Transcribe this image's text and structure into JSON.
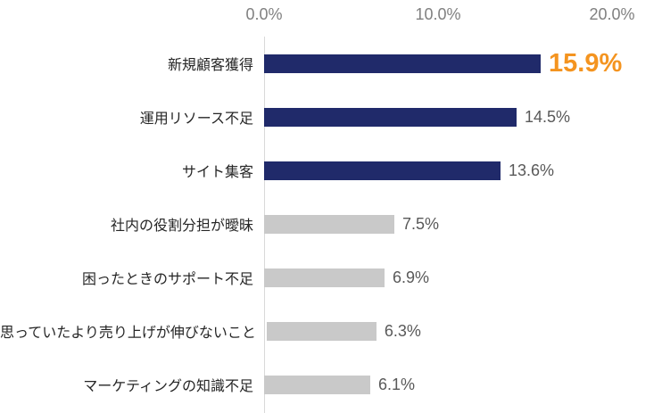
{
  "chart_data": {
    "type": "bar",
    "orientation": "horizontal",
    "title": "",
    "categories": [
      "新規顧客獲得",
      "運用リソース不足",
      "サイト集客",
      "社内の役割分担が曖昧",
      "困ったときのサポート不足",
      "思っていたより売り上げが伸びないこと",
      "マーケティングの知識不足"
    ],
    "values": [
      15.9,
      14.5,
      13.6,
      7.5,
      6.9,
      6.3,
      6.1
    ],
    "value_labels": [
      "15.9%",
      "14.5%",
      "13.6%",
      "7.5%",
      "6.9%",
      "6.3%",
      "6.1%"
    ],
    "bar_colors": [
      "#202A6A",
      "#202A6A",
      "#202A6A",
      "#C9C9C9",
      "#C9C9C9",
      "#C9C9C9",
      "#C9C9C9"
    ],
    "highlight_index": 0,
    "xlabel": "",
    "ylabel": "",
    "x_axis": {
      "position": "top",
      "range": [
        0,
        20
      ],
      "ticks": [
        0,
        10,
        20
      ],
      "tick_labels": [
        "0.0%",
        "10.0%",
        "20.0%"
      ]
    },
    "grid": false,
    "legend": null,
    "colors": {
      "primary_bar": "#202A6A",
      "secondary_bar": "#C9C9C9",
      "highlight_value_text": "#F49420",
      "value_text": "#595959",
      "category_text": "#262626",
      "axis_text": "#808080",
      "axis_line": "#D9D9D9"
    }
  }
}
